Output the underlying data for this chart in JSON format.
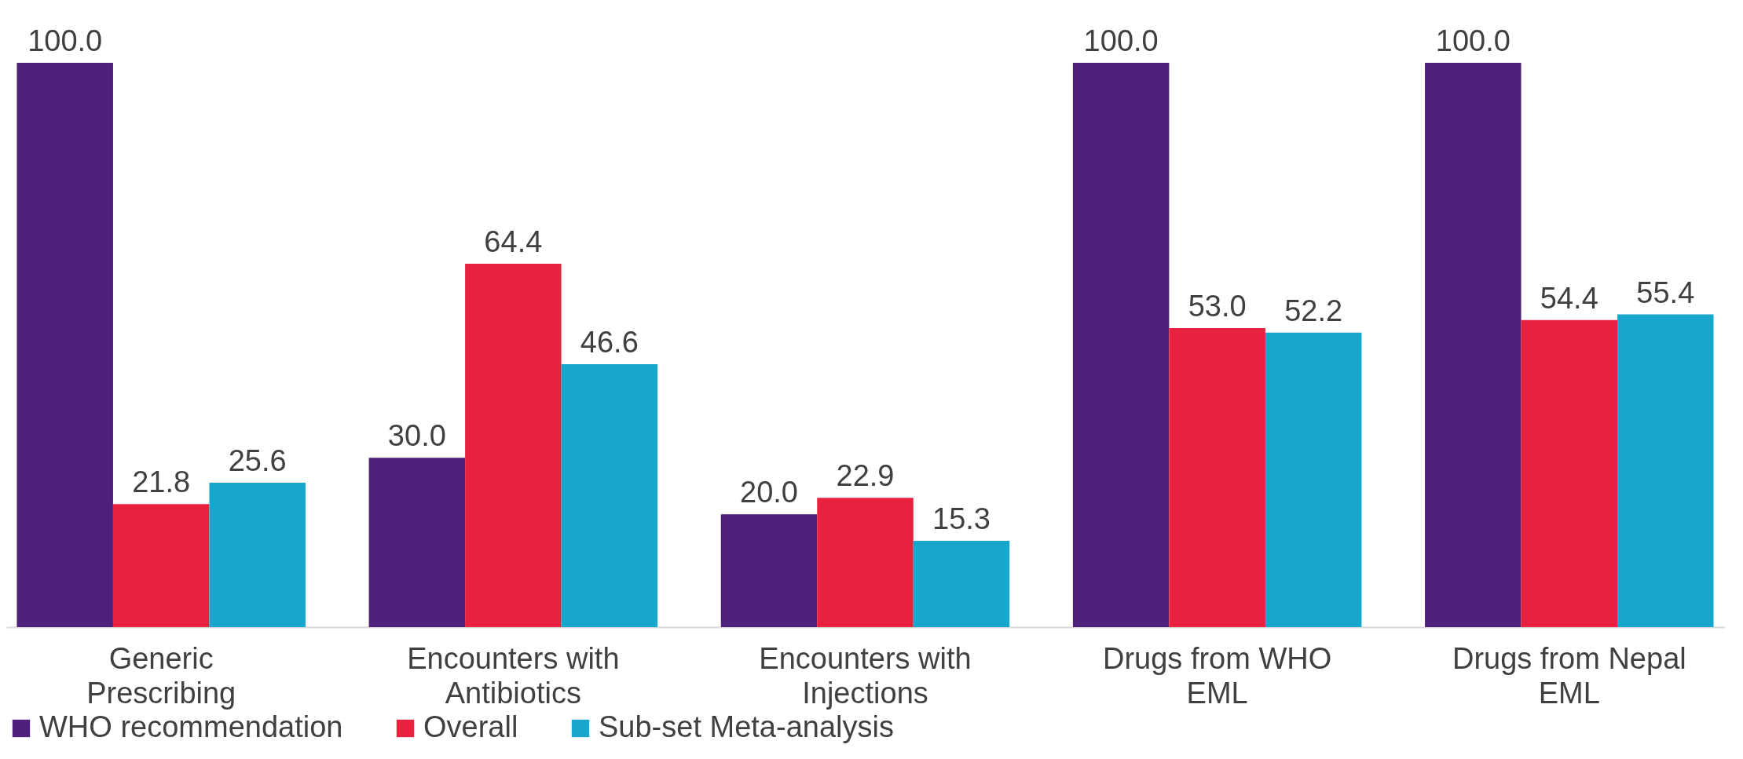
{
  "chart_data": {
    "type": "bar",
    "categories": [
      "Generic Prescribing",
      "Encounters with Antibiotics",
      "Encounters with Injections",
      "Drugs from WHO EML",
      "Drugs from Nepal EML"
    ],
    "series": [
      {
        "name": "WHO recommendation",
        "color": "#4f1f7c",
        "values": [
          100,
          30,
          20,
          100,
          100
        ],
        "value_labels": [
          "100.0",
          "30.0",
          "20.0",
          "100.0",
          "100.0"
        ]
      },
      {
        "name": "Overall",
        "color": "#e8213f",
        "values": [
          21.8,
          64.4,
          22.9,
          53,
          54.4
        ],
        "value_labels": [
          "21.8",
          "64.4",
          "22.9",
          "53.0",
          "54.4"
        ]
      },
      {
        "name": "Sub-set Meta-analysis",
        "color": "#17a6cc",
        "values": [
          25.6,
          46.6,
          15.3,
          52.2,
          55.4
        ],
        "value_labels": [
          "25.6",
          "46.6",
          "15.3",
          "52.2",
          "55.4"
        ]
      }
    ],
    "legend": "bottom"
  }
}
